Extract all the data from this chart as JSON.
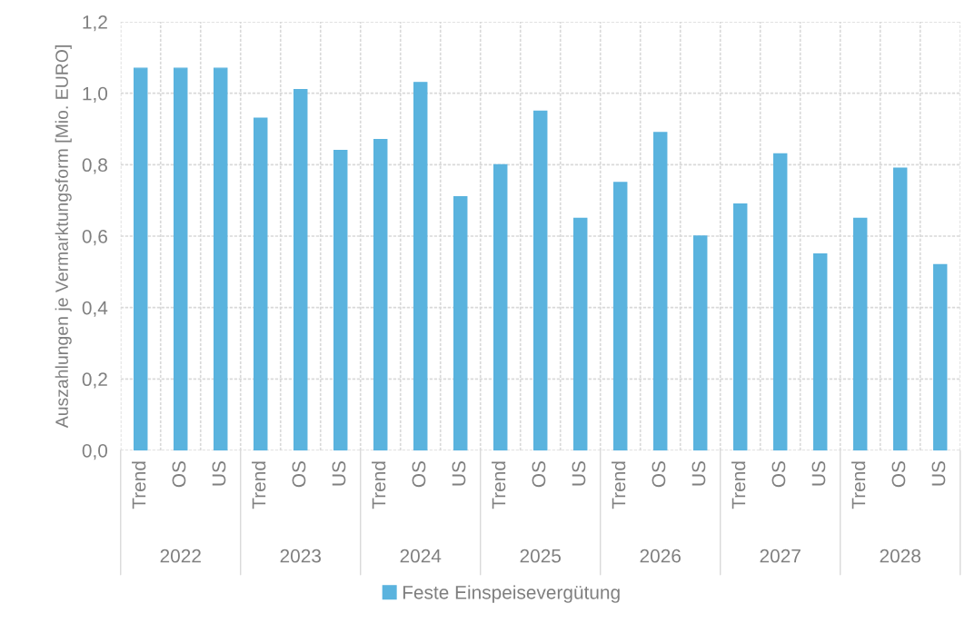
{
  "chart_data": {
    "type": "bar",
    "ylabel": "Auszahlungen je Vermarktungsform [Mio. EURO]",
    "categories": [
      "Trend",
      "OS",
      "US",
      "Trend",
      "OS",
      "US",
      "Trend",
      "OS",
      "US",
      "Trend",
      "OS",
      "US",
      "Trend",
      "OS",
      "US",
      "Trend",
      "OS",
      "US",
      "Trend",
      "OS",
      "US"
    ],
    "series": [
      {
        "name": "Feste Einspeisevergütung",
        "color": "#5ab3de",
        "values": [
          1.07,
          1.07,
          1.07,
          0.93,
          1.01,
          0.84,
          0.87,
          1.03,
          0.71,
          0.8,
          0.95,
          0.65,
          0.75,
          0.89,
          0.6,
          0.69,
          0.83,
          0.55,
          0.65,
          0.79,
          0.52
        ]
      }
    ],
    "annotations": [
      "2022",
      "2023",
      "2024",
      "2025",
      "2026",
      "2027",
      "2028"
    ],
    "ylim": [
      0,
      1.2
    ],
    "yticks": [
      {
        "value": 0,
        "label": "0,0"
      },
      {
        "value": 0.2,
        "label": "0,2"
      },
      {
        "value": 0.4,
        "label": "0,4"
      },
      {
        "value": 0.6,
        "label": "0,6"
      },
      {
        "value": 0.8,
        "label": "0,8"
      },
      {
        "value": 1.0,
        "label": "1,0"
      },
      {
        "value": 1.2,
        "label": "1,2"
      }
    ],
    "grid": true,
    "legend": "bottom"
  }
}
